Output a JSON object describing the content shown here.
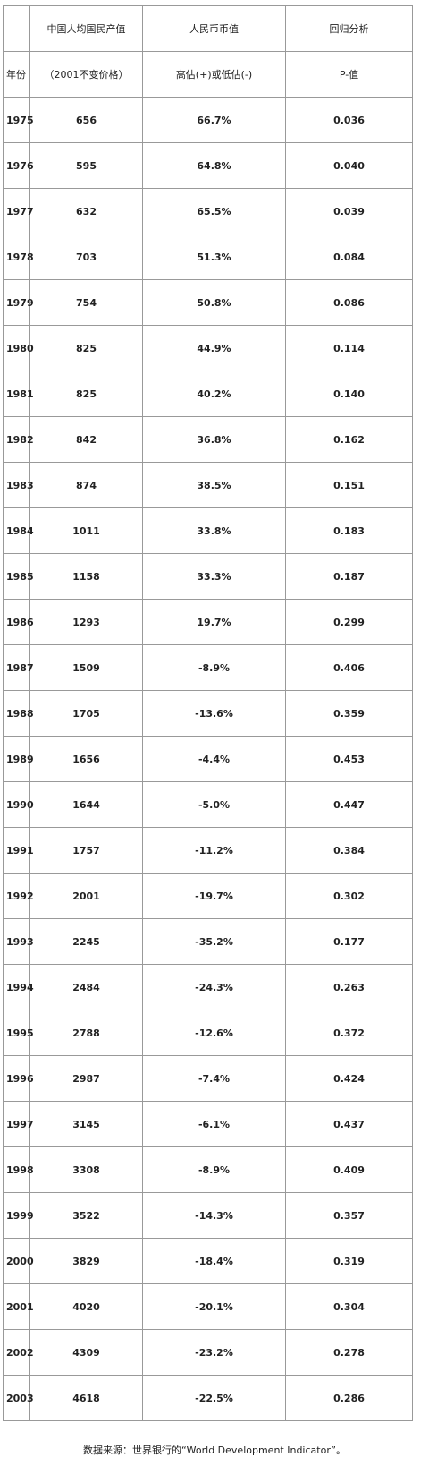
{
  "table": {
    "header_row1": {
      "year": "",
      "gnp": "中国人均国民产值",
      "rmb": "人民币币值",
      "p": "回归分析"
    },
    "header_row2": {
      "year": "年份",
      "gnp": "（2001不变价格）",
      "rmb": "高估(+)或低估(-)",
      "p": "P-值"
    },
    "rows": [
      {
        "year": "1975",
        "gnp": "656",
        "rmb": "66.7%",
        "p": "0.036"
      },
      {
        "year": "1976",
        "gnp": "595",
        "rmb": "64.8%",
        "p": "0.040"
      },
      {
        "year": "1977",
        "gnp": "632",
        "rmb": "65.5%",
        "p": "0.039"
      },
      {
        "year": "1978",
        "gnp": "703",
        "rmb": "51.3%",
        "p": "0.084"
      },
      {
        "year": "1979",
        "gnp": "754",
        "rmb": "50.8%",
        "p": "0.086"
      },
      {
        "year": "1980",
        "gnp": "825",
        "rmb": "44.9%",
        "p": "0.114"
      },
      {
        "year": "1981",
        "gnp": "825",
        "rmb": "40.2%",
        "p": "0.140"
      },
      {
        "year": "1982",
        "gnp": "842",
        "rmb": "36.8%",
        "p": "0.162"
      },
      {
        "year": "1983",
        "gnp": "874",
        "rmb": "38.5%",
        "p": "0.151"
      },
      {
        "year": "1984",
        "gnp": "1011",
        "rmb": "33.8%",
        "p": "0.183"
      },
      {
        "year": "1985",
        "gnp": "1158",
        "rmb": "33.3%",
        "p": "0.187"
      },
      {
        "year": "1986",
        "gnp": "1293",
        "rmb": "19.7%",
        "p": "0.299"
      },
      {
        "year": "1987",
        "gnp": "1509",
        "rmb": "-8.9%",
        "p": "0.406"
      },
      {
        "year": "1988",
        "gnp": "1705",
        "rmb": "-13.6%",
        "p": "0.359"
      },
      {
        "year": "1989",
        "gnp": "1656",
        "rmb": "-4.4%",
        "p": "0.453"
      },
      {
        "year": "1990",
        "gnp": "1644",
        "rmb": "-5.0%",
        "p": "0.447"
      },
      {
        "year": "1991",
        "gnp": "1757",
        "rmb": "-11.2%",
        "p": "0.384"
      },
      {
        "year": "1992",
        "gnp": "2001",
        "rmb": "-19.7%",
        "p": "0.302"
      },
      {
        "year": "1993",
        "gnp": "2245",
        "rmb": "-35.2%",
        "p": "0.177"
      },
      {
        "year": "1994",
        "gnp": "2484",
        "rmb": "-24.3%",
        "p": "0.263"
      },
      {
        "year": "1995",
        "gnp": "2788",
        "rmb": "-12.6%",
        "p": "0.372"
      },
      {
        "year": "1996",
        "gnp": "2987",
        "rmb": "-7.4%",
        "p": "0.424"
      },
      {
        "year": "1997",
        "gnp": "3145",
        "rmb": "-6.1%",
        "p": "0.437"
      },
      {
        "year": "1998",
        "gnp": "3308",
        "rmb": "-8.9%",
        "p": "0.409"
      },
      {
        "year": "1999",
        "gnp": "3522",
        "rmb": "-14.3%",
        "p": "0.357"
      },
      {
        "year": "2000",
        "gnp": "3829",
        "rmb": "-18.4%",
        "p": "0.319"
      },
      {
        "year": "2001",
        "gnp": "4020",
        "rmb": "-20.1%",
        "p": "0.304"
      },
      {
        "year": "2002",
        "gnp": "4309",
        "rmb": "-23.2%",
        "p": "0.278"
      },
      {
        "year": "2003",
        "gnp": "4618",
        "rmb": "-22.5%",
        "p": "0.286"
      }
    ]
  },
  "source_note": "数据来源：世界银行的“World Development Indicator”。"
}
